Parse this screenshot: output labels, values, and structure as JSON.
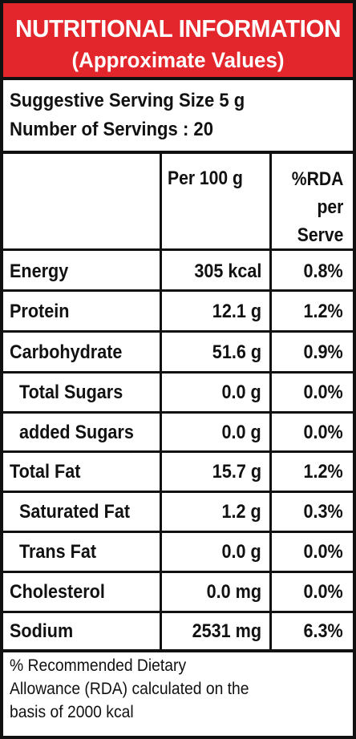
{
  "header": {
    "title": "NUTRITIONAL INFORMATION",
    "subtitle": "(Approximate Values)"
  },
  "serving": {
    "size_line": "Suggestive Serving Size  5 g",
    "servings_line": "Number of Servings : 20"
  },
  "columns": {
    "per_100g": "Per 100 g",
    "rda": [
      "%RDA",
      "per",
      "Serve"
    ]
  },
  "rows": [
    {
      "name": "Energy",
      "value": "305 kcal",
      "rda": "0.8%"
    },
    {
      "name": "Protein",
      "value": "12.1 g",
      "rda": "1.2%"
    },
    {
      "name": "Carbohydrate",
      "value": "51.6 g",
      "rda": "0.9%"
    },
    {
      "name": "Total Sugars",
      "value": "0.0 g",
      "rda": "0.0%"
    },
    {
      "name": "added Sugars",
      "value": "0.0 g",
      "rda": "0.0%"
    },
    {
      "name": "Total Fat",
      "value": "15.7 g",
      "rda": "1.2%"
    },
    {
      "name": "Saturated Fat",
      "value": "1.2 g",
      "rda": "0.3%"
    },
    {
      "name": "Trans Fat",
      "value": "0.0 g",
      "rda": "0.0%"
    },
    {
      "name": "Cholesterol",
      "value": "0.0 mg",
      "rda": "0.0%"
    },
    {
      "name": "Sodium",
      "value": "2531 mg",
      "rda": "6.3%"
    }
  ],
  "footnote": [
    "% Recommended Dietary",
    "Allowance (RDA) calculated on the",
    "basis of 2000 kcal"
  ],
  "colors": {
    "header_bg": "#e3262b",
    "header_text": "#ffffff",
    "border": "#111111"
  }
}
